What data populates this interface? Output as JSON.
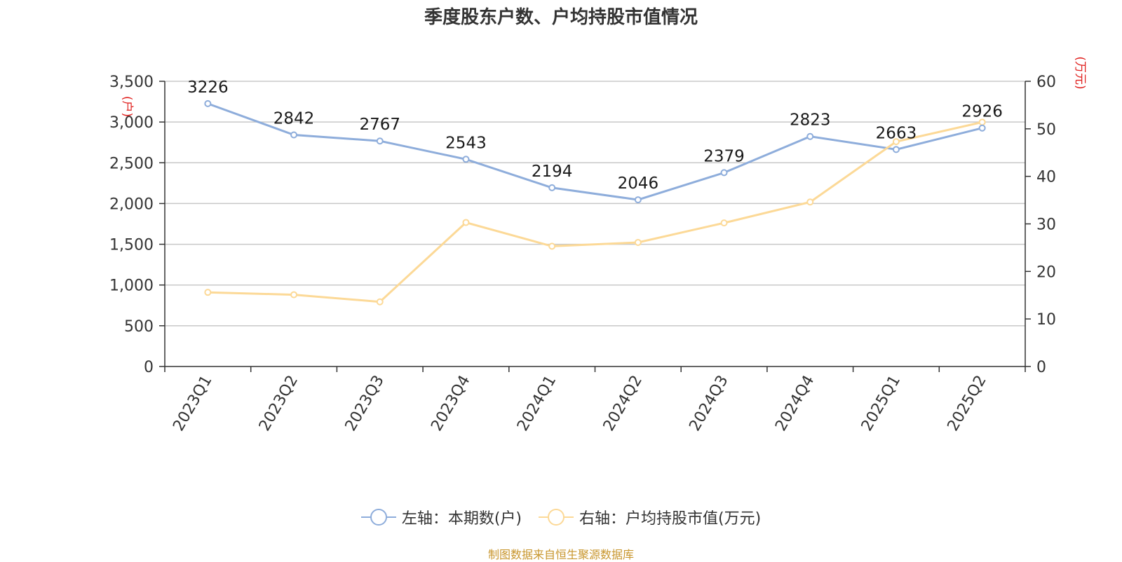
{
  "colors": {
    "series_left": "#8eaddb",
    "series_right": "#fcd997",
    "axis_unit": "#e0201e",
    "source": "#c8962d",
    "grid": "#c8c8c8",
    "axis": "#333333"
  },
  "source": "制图数据来自恒生聚源数据库",
  "chart_data": {
    "type": "line",
    "title": "季度股东户数、户均持股市值情况",
    "categories": [
      "2023Q1",
      "2023Q2",
      "2023Q3",
      "2023Q4",
      "2024Q1",
      "2024Q2",
      "2024Q3",
      "2024Q4",
      "2025Q1",
      "2025Q2"
    ],
    "y_left": {
      "unit": "(户)",
      "ylim": [
        0,
        3500
      ],
      "ticks": [
        0,
        500,
        1000,
        1500,
        2000,
        2500,
        3000,
        3500
      ],
      "tick_labels": [
        "0",
        "500",
        "1,000",
        "1,500",
        "2,000",
        "2,500",
        "3,000",
        "3,500"
      ]
    },
    "y_right": {
      "unit": "(万元)",
      "ylim": [
        0,
        60
      ],
      "ticks": [
        0,
        10,
        20,
        30,
        40,
        50,
        60
      ],
      "tick_labels": [
        "0",
        "10",
        "20",
        "30",
        "40",
        "50",
        "60"
      ]
    },
    "grid": true,
    "legend_position": "bottom",
    "series": [
      {
        "name": "左轴：本期数(户)",
        "axis": "left",
        "values": [
          3226,
          2842,
          2767,
          2543,
          2194,
          2046,
          2379,
          2823,
          2663,
          2926
        ],
        "data_labels": [
          "3226",
          "2842",
          "2767",
          "2543",
          "2194",
          "2046",
          "2379",
          "2823",
          "2663",
          "2926"
        ]
      },
      {
        "name": "右轴：户均持股市值(万元)",
        "axis": "right",
        "values": [
          15.6,
          15.1,
          13.6,
          30.3,
          25.3,
          26.1,
          30.2,
          34.6,
          47.3,
          51.4
        ]
      }
    ]
  }
}
